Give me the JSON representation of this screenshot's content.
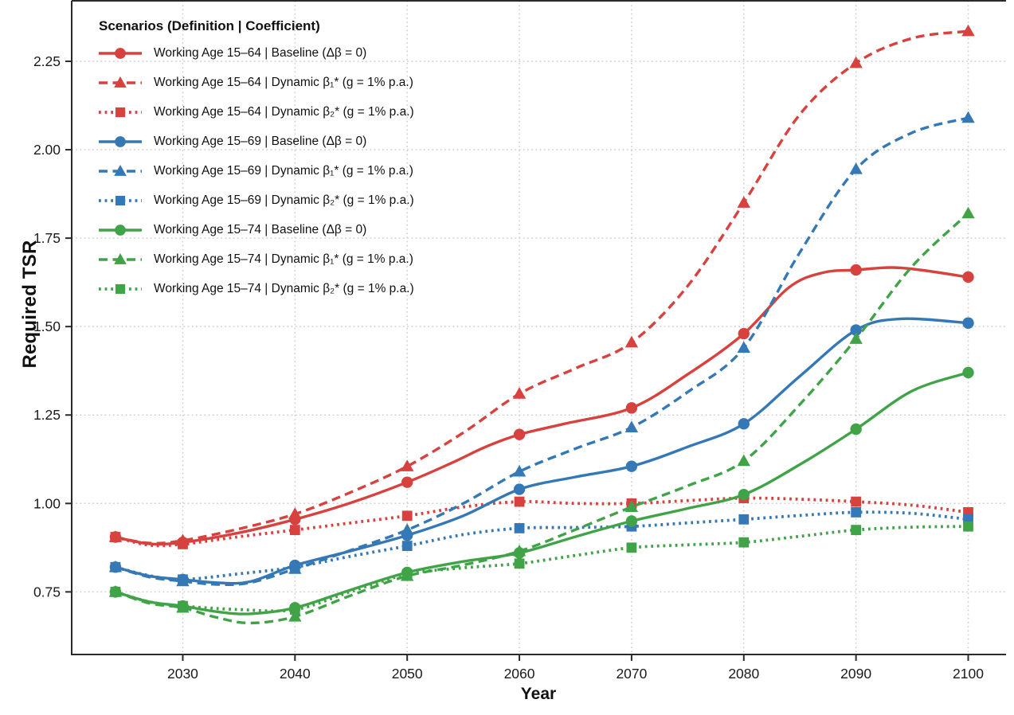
{
  "chart_data": {
    "type": "line",
    "title": "",
    "xlabel": "Year",
    "ylabel": "Required TSR",
    "legend_title": "Scenarios (Definition | Coefficient)",
    "legend_position": "top-left",
    "grid": "dotted",
    "grid_color": "#cfcfcf",
    "axis_color": "#2a2a2a",
    "text_color": "#1a1a1a",
    "xlim": [
      2020.1,
      2103.3
    ],
    "ylim": [
      0.573,
      2.421
    ],
    "x_ticks": [
      2030,
      2040,
      2050,
      2060,
      2070,
      2080,
      2090,
      2100
    ],
    "x_tick_labels": [
      "2030",
      "2040",
      "2050",
      "2060",
      "2070",
      "2080",
      "2090",
      "2100"
    ],
    "y_ticks": [
      0.75,
      1.0,
      1.25,
      1.5,
      1.75,
      2.0,
      2.25
    ],
    "y_tick_labels": [
      "0.75",
      "1.00",
      "1.25",
      "1.50",
      "1.75",
      "2.00",
      "2.25"
    ],
    "marker_years": [
      2024,
      2030,
      2040,
      2050,
      2060,
      2070,
      2080,
      2090,
      2100
    ],
    "series": [
      {
        "label": "Working Age 15–64 | Baseline (Δβ = 0)",
        "color": "#d7413e",
        "line": "solid",
        "marker": "circle",
        "points": [
          [
            2024,
            0.905
          ],
          [
            2027,
            0.886
          ],
          [
            2030,
            0.89
          ],
          [
            2035,
            0.917
          ],
          [
            2040,
            0.955
          ],
          [
            2045,
            1.002
          ],
          [
            2050,
            1.06
          ],
          [
            2054,
            1.115
          ],
          [
            2057,
            1.16
          ],
          [
            2060,
            1.195
          ],
          [
            2064,
            1.225
          ],
          [
            2070,
            1.27
          ],
          [
            2075,
            1.365
          ],
          [
            2080,
            1.48
          ],
          [
            2084,
            1.61
          ],
          [
            2087,
            1.652
          ],
          [
            2090,
            1.66
          ],
          [
            2094,
            1.666
          ],
          [
            2100,
            1.64
          ]
        ]
      },
      {
        "label": "Working Age 15–64 | Dynamic β₁*  (g = 1% p.a.)",
        "color": "#d7413e",
        "line": "dashed",
        "marker": "triangle",
        "points": [
          [
            2024,
            0.905
          ],
          [
            2027,
            0.888
          ],
          [
            2030,
            0.895
          ],
          [
            2035,
            0.928
          ],
          [
            2040,
            0.97
          ],
          [
            2045,
            1.032
          ],
          [
            2050,
            1.105
          ],
          [
            2055,
            1.2
          ],
          [
            2060,
            1.31
          ],
          [
            2065,
            1.382
          ],
          [
            2070,
            1.455
          ],
          [
            2075,
            1.615
          ],
          [
            2080,
            1.85
          ],
          [
            2085,
            2.1
          ],
          [
            2090,
            2.245
          ],
          [
            2095,
            2.315
          ],
          [
            2100,
            2.335
          ]
        ]
      },
      {
        "label": "Working Age 15–64 | Dynamic β₂*  (g = 1% p.a.)",
        "color": "#d7413e",
        "line": "dotted",
        "marker": "square",
        "points": [
          [
            2024,
            0.905
          ],
          [
            2027,
            0.882
          ],
          [
            2030,
            0.885
          ],
          [
            2035,
            0.906
          ],
          [
            2040,
            0.925
          ],
          [
            2045,
            0.945
          ],
          [
            2050,
            0.965
          ],
          [
            2055,
            0.99
          ],
          [
            2060,
            1.005
          ],
          [
            2065,
            1.0
          ],
          [
            2070,
            1.0
          ],
          [
            2075,
            1.008
          ],
          [
            2080,
            1.015
          ],
          [
            2085,
            1.012
          ],
          [
            2090,
            1.005
          ],
          [
            2095,
            0.995
          ],
          [
            2100,
            0.975
          ]
        ]
      },
      {
        "label": "Working Age 15–69 | Baseline (Δβ = 0)",
        "color": "#3478b6",
        "line": "solid",
        "marker": "circle",
        "points": [
          [
            2024,
            0.82
          ],
          [
            2027,
            0.795
          ],
          [
            2030,
            0.785
          ],
          [
            2033,
            0.776
          ],
          [
            2036,
            0.779
          ],
          [
            2040,
            0.825
          ],
          [
            2045,
            0.866
          ],
          [
            2050,
            0.91
          ],
          [
            2055,
            0.965
          ],
          [
            2060,
            1.04
          ],
          [
            2065,
            1.075
          ],
          [
            2070,
            1.105
          ],
          [
            2075,
            1.16
          ],
          [
            2080,
            1.225
          ],
          [
            2085,
            1.36
          ],
          [
            2090,
            1.49
          ],
          [
            2094,
            1.522
          ],
          [
            2100,
            1.51
          ]
        ]
      },
      {
        "label": "Working Age 15–69 | Dynamic β₁*  (g = 1% p.a.)",
        "color": "#3478b6",
        "line": "dashed",
        "marker": "triangle",
        "points": [
          [
            2024,
            0.82
          ],
          [
            2027,
            0.792
          ],
          [
            2030,
            0.78
          ],
          [
            2033,
            0.771
          ],
          [
            2036,
            0.776
          ],
          [
            2040,
            0.815
          ],
          [
            2045,
            0.868
          ],
          [
            2050,
            0.925
          ],
          [
            2055,
            1.0
          ],
          [
            2060,
            1.09
          ],
          [
            2065,
            1.155
          ],
          [
            2070,
            1.215
          ],
          [
            2075,
            1.315
          ],
          [
            2080,
            1.44
          ],
          [
            2085,
            1.71
          ],
          [
            2090,
            1.945
          ],
          [
            2095,
            2.048
          ],
          [
            2100,
            2.09
          ]
        ]
      },
      {
        "label": "Working Age 15–69 | Dynamic β₂*  (g = 1% p.a.)",
        "color": "#3478b6",
        "line": "dotted",
        "marker": "square",
        "points": [
          [
            2024,
            0.82
          ],
          [
            2027,
            0.796
          ],
          [
            2030,
            0.785
          ],
          [
            2035,
            0.801
          ],
          [
            2040,
            0.82
          ],
          [
            2045,
            0.851
          ],
          [
            2050,
            0.88
          ],
          [
            2055,
            0.912
          ],
          [
            2060,
            0.93
          ],
          [
            2065,
            0.932
          ],
          [
            2070,
            0.935
          ],
          [
            2075,
            0.945
          ],
          [
            2080,
            0.955
          ],
          [
            2085,
            0.966
          ],
          [
            2090,
            0.975
          ],
          [
            2095,
            0.972
          ],
          [
            2100,
            0.955
          ]
        ]
      },
      {
        "label": "Working Age 15–74 | Baseline (Δβ = 0)",
        "color": "#41a348",
        "line": "solid",
        "marker": "circle",
        "points": [
          [
            2024,
            0.75
          ],
          [
            2027,
            0.722
          ],
          [
            2030,
            0.71
          ],
          [
            2033,
            0.694
          ],
          [
            2036,
            0.688
          ],
          [
            2040,
            0.705
          ],
          [
            2045,
            0.756
          ],
          [
            2050,
            0.805
          ],
          [
            2055,
            0.836
          ],
          [
            2060,
            0.86
          ],
          [
            2065,
            0.906
          ],
          [
            2070,
            0.95
          ],
          [
            2075,
            0.986
          ],
          [
            2080,
            1.025
          ],
          [
            2085,
            1.11
          ],
          [
            2090,
            1.21
          ],
          [
            2095,
            1.318
          ],
          [
            2100,
            1.37
          ]
        ]
      },
      {
        "label": "Working Age 15–74 | Dynamic β₁*  (g = 1% p.a.)",
        "color": "#41a348",
        "line": "dashed",
        "marker": "triangle",
        "points": [
          [
            2024,
            0.75
          ],
          [
            2027,
            0.718
          ],
          [
            2030,
            0.705
          ],
          [
            2033,
            0.678
          ],
          [
            2036,
            0.662
          ],
          [
            2040,
            0.68
          ],
          [
            2045,
            0.74
          ],
          [
            2050,
            0.795
          ],
          [
            2055,
            0.826
          ],
          [
            2060,
            0.865
          ],
          [
            2065,
            0.926
          ],
          [
            2070,
            0.99
          ],
          [
            2075,
            1.05
          ],
          [
            2080,
            1.12
          ],
          [
            2085,
            1.28
          ],
          [
            2090,
            1.465
          ],
          [
            2095,
            1.67
          ],
          [
            2100,
            1.82
          ]
        ]
      },
      {
        "label": "Working Age 15–74 | Dynamic β₂*  (g = 1% p.a.)",
        "color": "#41a348",
        "line": "dotted",
        "marker": "square",
        "points": [
          [
            2024,
            0.75
          ],
          [
            2027,
            0.722
          ],
          [
            2030,
            0.71
          ],
          [
            2035,
            0.7
          ],
          [
            2040,
            0.7
          ],
          [
            2045,
            0.751
          ],
          [
            2050,
            0.8
          ],
          [
            2055,
            0.818
          ],
          [
            2060,
            0.83
          ],
          [
            2065,
            0.853
          ],
          [
            2070,
            0.875
          ],
          [
            2075,
            0.883
          ],
          [
            2080,
            0.89
          ],
          [
            2085,
            0.907
          ],
          [
            2090,
            0.925
          ],
          [
            2095,
            0.933
          ],
          [
            2100,
            0.935
          ]
        ]
      }
    ]
  }
}
